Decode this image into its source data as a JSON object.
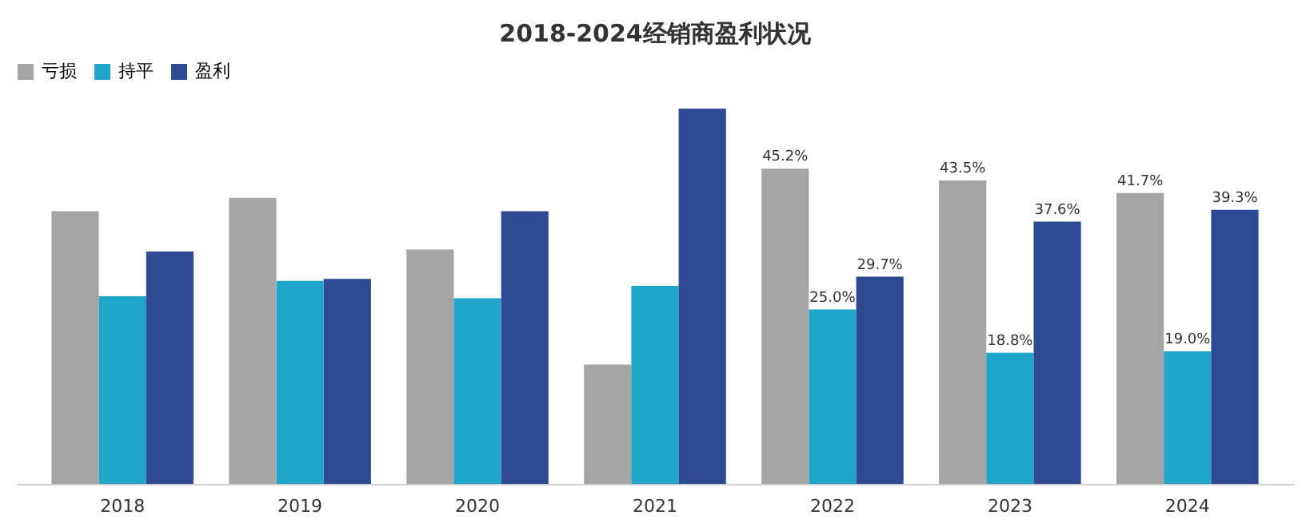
{
  "chart_data": {
    "type": "bar",
    "title": "2018-2024经销商盈利状况",
    "categories": [
      "2018",
      "2019",
      "2020",
      "2021",
      "2022",
      "2023",
      "2024"
    ],
    "series": [
      {
        "name": "亏损",
        "color": "#a5a5a5",
        "values": [
          39.1,
          41.0,
          33.6,
          17.1,
          45.2,
          43.5,
          41.7
        ],
        "value_labels": [
          null,
          null,
          null,
          null,
          "45.2%",
          "43.5%",
          "41.7%"
        ]
      },
      {
        "name": "持平",
        "color": "#1ea5c8",
        "values": [
          26.9,
          29.1,
          26.6,
          28.4,
          25.0,
          18.8,
          19.0
        ],
        "value_labels": [
          null,
          null,
          null,
          null,
          "25.0%",
          "18.8%",
          "19.0%"
        ]
      },
      {
        "name": "盈利",
        "color": "#2e4a93",
        "values": [
          33.3,
          29.4,
          39.1,
          53.8,
          29.7,
          37.6,
          39.3
        ],
        "value_labels": [
          null,
          null,
          null,
          null,
          "29.7%",
          "37.6%",
          "39.3%"
        ]
      }
    ],
    "legend": "top",
    "grid": false
  }
}
